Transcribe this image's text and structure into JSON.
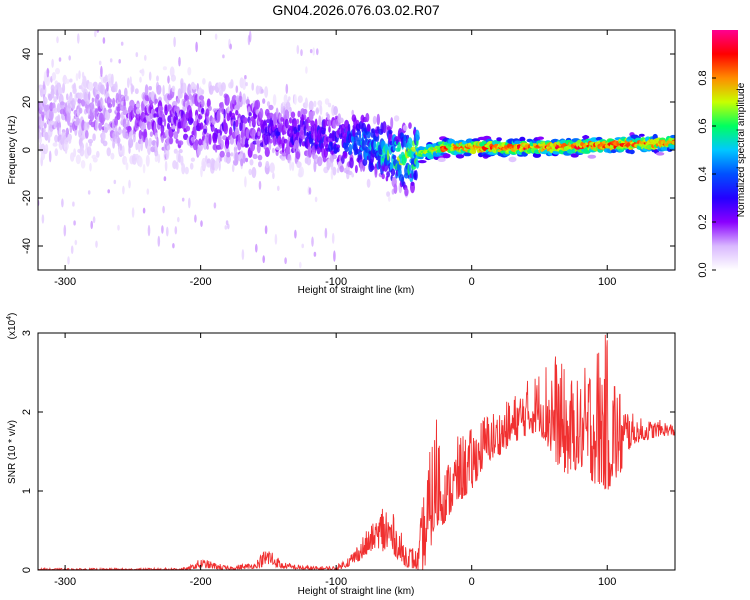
{
  "title": "GN04.2026.076.03.02.R07",
  "colors": {
    "snr_line": "#f03030",
    "colorbar": [
      "#ffffff",
      "#d9b8ff",
      "#8a00ff",
      "#2400ff",
      "#0050ff",
      "#00c8ff",
      "#00ff60",
      "#c8ff00",
      "#ff8c00",
      "#ff0000",
      "#ff0090"
    ]
  },
  "chart_data": [
    {
      "type": "heatmap",
      "name": "spectrogram",
      "xlabel": "Height of straight line (km)",
      "ylabel": "Frequency (Hz)",
      "xlim": [
        -320,
        150
      ],
      "ylim": [
        -50,
        50
      ],
      "x_ticks": [
        -300,
        -200,
        -100,
        0,
        100
      ],
      "y_ticks": [
        -40,
        -20,
        0,
        20,
        40
      ],
      "colorbar": {
        "label": "Normalized spectral amplitude",
        "range": [
          0.0,
          1.0
        ],
        "ticks": [
          "0.0",
          "0.2",
          "0.4",
          "0.6",
          "0.8"
        ],
        "tick_values": [
          0.0,
          0.2,
          0.4,
          0.6,
          0.8
        ]
      },
      "ridge": {
        "x": [
          -300,
          -260,
          -220,
          -180,
          -140,
          -100,
          -80,
          -60,
          -50,
          -40,
          -20,
          0,
          50,
          100,
          150
        ],
        "freq_center": [
          14,
          14,
          12,
          10,
          7,
          4,
          2,
          -2,
          -4,
          -2,
          1,
          1,
          1,
          2,
          3
        ],
        "amplitude": [
          0.12,
          0.15,
          0.2,
          0.22,
          0.25,
          0.3,
          0.45,
          0.55,
          0.6,
          0.7,
          0.85,
          0.9,
          0.9,
          0.92,
          0.85
        ]
      }
    },
    {
      "type": "line",
      "name": "snr",
      "xlabel": "Height of straight line (km)",
      "ylabel": "SNR (10 * v/v)",
      "multiplier_label": "(x10",
      "multiplier_exp": "4",
      "multiplier_close": ")",
      "xlim": [
        -320,
        150
      ],
      "ylim": [
        0,
        3
      ],
      "x_ticks": [
        -300,
        -200,
        -100,
        0,
        100
      ],
      "y_ticks": [
        0,
        1,
        2,
        3
      ],
      "envelope": {
        "x": [
          -320,
          -300,
          -250,
          -210,
          -200,
          -180,
          -160,
          -150,
          -140,
          -120,
          -100,
          -90,
          -80,
          -70,
          -65,
          -60,
          -50,
          -40,
          -35,
          -30,
          -25,
          -20,
          -10,
          0,
          10,
          20,
          30,
          40,
          50,
          60,
          70,
          80,
          90,
          100,
          110,
          115,
          120,
          130,
          140,
          150
        ],
        "low": [
          0.0,
          0.0,
          0.0,
          0.0,
          0.03,
          0.0,
          0.02,
          0.06,
          0.02,
          0.0,
          0.0,
          0.05,
          0.15,
          0.3,
          0.2,
          0.25,
          0.05,
          0.0,
          0.0,
          0.3,
          0.5,
          0.6,
          0.85,
          1.0,
          1.35,
          1.45,
          1.6,
          1.7,
          1.75,
          1.4,
          1.2,
          1.3,
          1.1,
          1.0,
          1.2,
          1.5,
          1.6,
          1.65,
          1.7,
          1.7
        ],
        "high": [
          0.02,
          0.02,
          0.02,
          0.03,
          0.15,
          0.05,
          0.1,
          0.33,
          0.1,
          0.05,
          0.05,
          0.2,
          0.45,
          0.65,
          0.95,
          0.8,
          0.4,
          0.25,
          1.1,
          1.6,
          2.2,
          1.3,
          1.7,
          1.8,
          2.0,
          2.05,
          2.2,
          2.4,
          2.55,
          2.85,
          2.5,
          2.4,
          2.9,
          3.0,
          2.3,
          2.1,
          1.95,
          1.9,
          1.9,
          1.85
        ]
      }
    }
  ]
}
